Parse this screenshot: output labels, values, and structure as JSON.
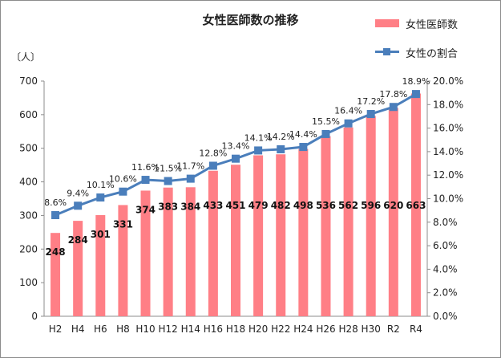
{
  "chart_data": {
    "type": "bar+line",
    "title": "女性医師数の推移",
    "ylabel_left": "〔人〕",
    "categories": [
      "H2",
      "H4",
      "H6",
      "H8",
      "H10",
      "H12",
      "H14",
      "H16",
      "H18",
      "H20",
      "H22",
      "H24",
      "H26",
      "H28",
      "H30",
      "R2",
      "R4"
    ],
    "series": [
      {
        "name": "女性医師数",
        "type": "bar",
        "axis": "left",
        "color": "#ff7f86",
        "values": [
          248,
          284,
          301,
          331,
          374,
          383,
          384,
          433,
          451,
          479,
          482,
          498,
          536,
          562,
          596,
          620,
          663
        ]
      },
      {
        "name": "女性の割合",
        "type": "line",
        "axis": "right",
        "color": "#4a7ebb",
        "values": [
          8.6,
          9.4,
          10.1,
          10.6,
          11.6,
          11.5,
          11.7,
          12.8,
          13.4,
          14.1,
          14.2,
          14.4,
          15.5,
          16.4,
          17.2,
          17.8,
          18.9
        ],
        "labels": [
          "8.6%",
          "9.4%",
          "10.1%",
          "10.6%",
          "11.6%",
          "11.5%",
          "11.7%",
          "12.8%",
          "13.4%",
          "14.1%",
          "14.2%",
          "14.4%",
          "15.5%",
          "16.4%",
          "17.2%",
          "17.8%",
          "18.9%"
        ]
      }
    ],
    "ylim_left": [
      0,
      700
    ],
    "yticks_left": [
      "0",
      "100",
      "200",
      "300",
      "400",
      "500",
      "600",
      "700"
    ],
    "ylim_right": [
      0,
      20
    ],
    "yticks_right": [
      "0.0%",
      "2.0%",
      "4.0%",
      "6.0%",
      "8.0%",
      "10.0%",
      "12.0%",
      "14.0%",
      "16.0%",
      "18.0%",
      "20.0%"
    ],
    "grid": false,
    "legend_position": "top-right"
  }
}
